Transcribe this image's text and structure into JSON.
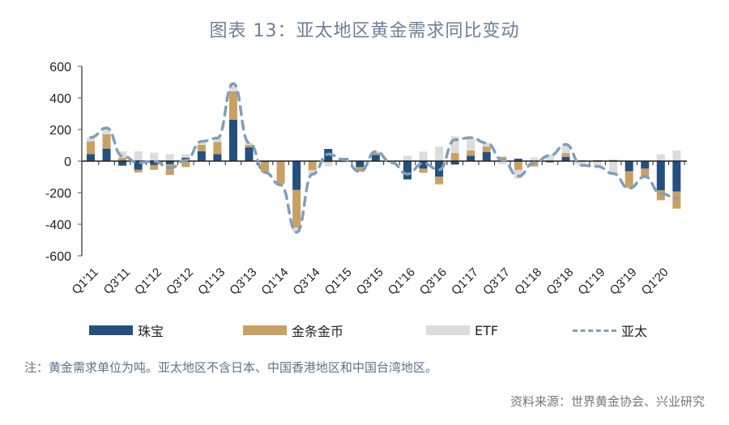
{
  "chart_data": {
    "type": "bar",
    "stacked": true,
    "title": "图表 13：亚太地区黄金需求同比变动",
    "categories": [
      "Q1'11",
      "Q2'11",
      "Q3'11",
      "Q4'11",
      "Q1'12",
      "Q2'12",
      "Q3'12",
      "Q4'12",
      "Q1'13",
      "Q2'13",
      "Q3'13",
      "Q4'13",
      "Q1'14",
      "Q2'14",
      "Q3'14",
      "Q4'14",
      "Q1'15",
      "Q2'15",
      "Q3'15",
      "Q4'15",
      "Q1'16",
      "Q2'16",
      "Q3'16",
      "Q4'16",
      "Q1'17",
      "Q2'17",
      "Q3'17",
      "Q4'17",
      "Q1'18",
      "Q2'18",
      "Q3'18",
      "Q4'18",
      "Q1'19",
      "Q2'19",
      "Q3'19",
      "Q4'19",
      "Q1'20",
      "Q2'20"
    ],
    "tick_labels": [
      "Q1'11",
      "Q3'11",
      "Q1'12",
      "Q3'12",
      "Q1'13",
      "Q3'13",
      "Q1'14",
      "Q3'14",
      "Q1'15",
      "Q3'15",
      "Q1'16",
      "Q3'16",
      "Q1'17",
      "Q3'17",
      "Q1'18",
      "Q3'18",
      "Q1'19",
      "Q3'19",
      "Q1'20"
    ],
    "ylim": [
      -600,
      600
    ],
    "yticks": [
      600,
      400,
      200,
      0,
      -200,
      -400,
      -600
    ],
    "grid": false,
    "legend_position": "bottom",
    "series": [
      {
        "name": "珠宝",
        "type": "bar",
        "color": "#24507e",
        "values": [
          44,
          79,
          -29,
          -55,
          -25,
          -20,
          22,
          62,
          44,
          262,
          87,
          -5,
          -3,
          -183,
          -3,
          77,
          19,
          -38,
          39,
          -5,
          -116,
          -48,
          -99,
          -22,
          34,
          58,
          3,
          15,
          -3,
          -8,
          26,
          0,
          5,
          5,
          -65,
          -48,
          -185,
          -193
        ]
      },
      {
        "name": "金条金币",
        "type": "bar",
        "color": "#c9a064",
        "values": [
          81,
          92,
          22,
          -17,
          -30,
          -68,
          -38,
          42,
          77,
          179,
          16,
          -67,
          -140,
          -239,
          -55,
          -8,
          -5,
          -30,
          14,
          0,
          0,
          -26,
          -48,
          51,
          33,
          34,
          24,
          -56,
          -31,
          2,
          25,
          5,
          0,
          3,
          -103,
          -51,
          -63,
          -108
        ]
      },
      {
        "name": "ETF",
        "type": "bar",
        "color": "#dcdcdc",
        "values": [
          25,
          39,
          40,
          62,
          53,
          44,
          21,
          21,
          25,
          50,
          13,
          0,
          -9,
          -29,
          -25,
          -25,
          -5,
          0,
          8,
          -5,
          34,
          60,
          92,
          106,
          82,
          23,
          -20,
          -55,
          24,
          41,
          55,
          -31,
          -39,
          -87,
          -5,
          0,
          43,
          67
        ]
      },
      {
        "name": "亚太",
        "type": "line",
        "style": "dashed",
        "color": "#7f9fba",
        "values": [
          150,
          210,
          33,
          -10,
          -2,
          -44,
          5,
          125,
          146,
          491,
          116,
          -72,
          -152,
          -451,
          -83,
          44,
          9,
          -68,
          61,
          -10,
          -82,
          -14,
          -55,
          135,
          149,
          115,
          7,
          -96,
          -10,
          35,
          106,
          -26,
          -34,
          -79,
          -173,
          -99,
          -205,
          -234
        ]
      }
    ]
  },
  "note": "注：黄金需求单位为吨。亚太地区不含日本、中国香港地区和中国台湾地区。",
  "source": "资料来源：世界黄金协会、兴业研究"
}
